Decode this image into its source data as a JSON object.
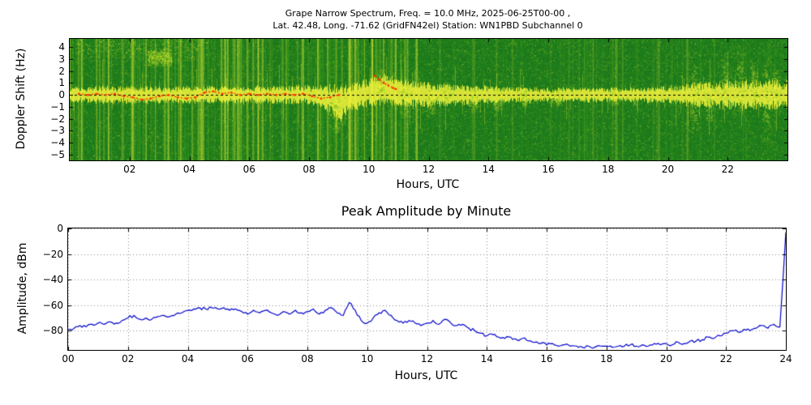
{
  "figure": {
    "background": "#ffffff"
  },
  "chart_data": [
    {
      "type": "heatmap",
      "title_line1": "Grape Narrow Spectrum, Freq. = 10.0 MHz, 2025-06-25T00-00 ,",
      "title_line2": "Lat.  42.48, Long. -71.62 (GridFN42el) Station: WN1PBD Subchannel 0",
      "xlabel": "Hours, UTC",
      "ylabel": "Doppler Shift (Hz)",
      "xlim": [
        0,
        24
      ],
      "ylim": [
        -5.5,
        4.7
      ],
      "xticks": [
        2,
        4,
        6,
        8,
        10,
        12,
        14,
        16,
        18,
        20,
        22
      ],
      "xtick_labels": [
        "02",
        "04",
        "06",
        "08",
        "10",
        "12",
        "14",
        "16",
        "18",
        "20",
        "22"
      ],
      "yticks": [
        4,
        3,
        2,
        1,
        0,
        -1,
        -2,
        -3,
        -4,
        -5
      ],
      "ytick_labels": [
        "4",
        "3",
        "2",
        "1",
        "0",
        "−1",
        "−2",
        "−3",
        "−4",
        "−5"
      ],
      "colormap": {
        "low": "#1c7a1c",
        "mid": "#58b41c",
        "high": "#f4f43c",
        "trace": "#ff3300",
        "zero_line": "#000000"
      },
      "band": {
        "x": [
          0,
          1,
          2,
          3,
          4,
          5,
          6,
          7,
          8,
          8.7,
          9,
          9.3,
          10,
          10.5,
          11,
          12,
          13,
          14,
          15,
          16,
          17,
          18,
          19,
          20,
          21,
          22,
          23,
          24
        ],
        "center": [
          0,
          0,
          0,
          0,
          0,
          0,
          0,
          0,
          0,
          -0.3,
          -0.8,
          -0.3,
          0.2,
          0.5,
          0.2,
          0,
          0,
          0,
          0,
          0,
          0,
          0,
          0,
          0,
          0,
          0,
          0,
          0
        ],
        "halfwidth": [
          0.45,
          0.5,
          0.5,
          0.5,
          0.5,
          0.5,
          0.5,
          0.5,
          0.55,
          0.8,
          1.1,
          0.8,
          0.8,
          0.9,
          0.8,
          0.7,
          0.6,
          0.5,
          0.45,
          0.4,
          0.4,
          0.4,
          0.4,
          0.5,
          0.7,
          0.8,
          0.9,
          0.8
        ]
      },
      "doppler_trace": [
        [
          0.3,
          0.1
        ],
        [
          0.6,
          0.0
        ],
        [
          0.9,
          0.1
        ],
        [
          1.2,
          0.0
        ],
        [
          1.5,
          0.1
        ],
        [
          1.8,
          -0.1
        ],
        [
          2.1,
          -0.2
        ],
        [
          2.4,
          -0.4
        ],
        [
          2.7,
          -0.3
        ],
        [
          3.0,
          -0.1
        ],
        [
          3.3,
          0.0
        ],
        [
          3.6,
          -0.2
        ],
        [
          3.9,
          -0.3
        ],
        [
          4.2,
          -0.2
        ],
        [
          4.5,
          0.2
        ],
        [
          4.8,
          0.3
        ],
        [
          5.1,
          0.1
        ],
        [
          5.4,
          0.2
        ],
        [
          5.7,
          0.0
        ],
        [
          6.0,
          0.1
        ],
        [
          6.3,
          0.0
        ],
        [
          6.6,
          0.1
        ],
        [
          6.9,
          0.0
        ],
        [
          7.2,
          0.1
        ],
        [
          7.5,
          0.0
        ],
        [
          7.8,
          0.1
        ],
        [
          8.1,
          -0.1
        ],
        [
          8.4,
          -0.3
        ],
        [
          8.7,
          -0.2
        ],
        [
          9.0,
          0.0
        ]
      ],
      "doppler_trace_2": [
        [
          10.2,
          1.6
        ],
        [
          10.35,
          1.3
        ],
        [
          10.5,
          1.0
        ],
        [
          10.65,
          0.8
        ],
        [
          10.8,
          0.6
        ],
        [
          10.9,
          0.5
        ]
      ],
      "plumes": [
        [
          8.9,
          0.6,
          2.6
        ],
        [
          10.4,
          1.8,
          0.8
        ],
        [
          11.2,
          0.8,
          2.0
        ],
        [
          12.1,
          0.6,
          1.6
        ],
        [
          12.6,
          1.1,
          0.6
        ],
        [
          13.5,
          0.7,
          1.5
        ],
        [
          14.3,
          0.6,
          1.3
        ],
        [
          15.2,
          0.5,
          1.1
        ],
        [
          16.3,
          0.5,
          0.9
        ],
        [
          18.2,
          0.6,
          0.8
        ],
        [
          20.9,
          2.8,
          3.2
        ],
        [
          21.4,
          1.0,
          2.2
        ],
        [
          21.9,
          3.6,
          1.2
        ],
        [
          22.4,
          4.2,
          1.6
        ],
        [
          22.9,
          2.0,
          1.0
        ],
        [
          23.3,
          3.2,
          4.0
        ],
        [
          23.6,
          2.2,
          1.2
        ]
      ],
      "clouds": [
        {
          "h0": 0.2,
          "h1": 4.6,
          "hz": 4.0,
          "spread": 0.8
        },
        {
          "h0": 2.6,
          "h1": 3.4,
          "hz": 3.1,
          "spread": 0.5
        }
      ],
      "streaks": {
        "dense_until_hour": 11.3,
        "dense_count": 160,
        "sparse_count": 60
      },
      "bright_streak_hours": [
        0.4,
        1.3,
        2.1,
        3.3,
        4.4,
        5.2,
        6.3,
        7.8,
        8.3,
        9.35,
        9.55,
        10.9,
        11.6
      ]
    },
    {
      "type": "line",
      "title": "Peak Amplitude by Minute",
      "xlabel": "Hours, UTC",
      "ylabel": "Amplitude, dBm",
      "xlim": [
        0,
        24
      ],
      "ylim": [
        -95,
        0
      ],
      "xticks": [
        0,
        2,
        4,
        6,
        8,
        10,
        12,
        14,
        16,
        18,
        20,
        22,
        24
      ],
      "xtick_labels": [
        "00",
        "02",
        "04",
        "06",
        "08",
        "10",
        "12",
        "14",
        "16",
        "18",
        "20",
        "22",
        "24"
      ],
      "yticks": [
        0,
        -20,
        -40,
        -60,
        -80
      ],
      "ytick_labels": [
        "0",
        "−20",
        "−40",
        "−60",
        "−80"
      ],
      "grid": true,
      "line_color": "#0000cc",
      "x_start": 0,
      "x_step": 0.2,
      "values": [
        -79,
        -78,
        -76,
        -77,
        -75,
        -74,
        -75,
        -73,
        -74,
        -72,
        -70,
        -68,
        -71,
        -70,
        -71,
        -69,
        -68,
        -69,
        -67,
        -66,
        -64,
        -63,
        -62,
        -63,
        -62,
        -63,
        -62,
        -64,
        -63,
        -65,
        -67,
        -64,
        -66,
        -64,
        -66,
        -68,
        -65,
        -67,
        -64,
        -66,
        -65,
        -63,
        -67,
        -64,
        -62,
        -66,
        -68,
        -58,
        -64,
        -72,
        -74,
        -70,
        -66,
        -64,
        -68,
        -72,
        -74,
        -72,
        -74,
        -76,
        -74,
        -72,
        -75,
        -71,
        -74,
        -76,
        -75,
        -78,
        -80,
        -82,
        -84,
        -83,
        -85,
        -86,
        -85,
        -87,
        -86,
        -88,
        -89,
        -90,
        -91,
        -90,
        -92,
        -91,
        -92,
        -92,
        -93,
        -92,
        -93,
        -92,
        -92,
        -93,
        -92,
        -92,
        -91,
        -92,
        -91,
        -92,
        -90,
        -91,
        -90,
        -91,
        -89,
        -90,
        -88,
        -88,
        -87,
        -85,
        -86,
        -84,
        -82,
        -80,
        -81,
        -79,
        -80,
        -78,
        -76,
        -78,
        -75,
        -77,
        -3
      ]
    }
  ]
}
